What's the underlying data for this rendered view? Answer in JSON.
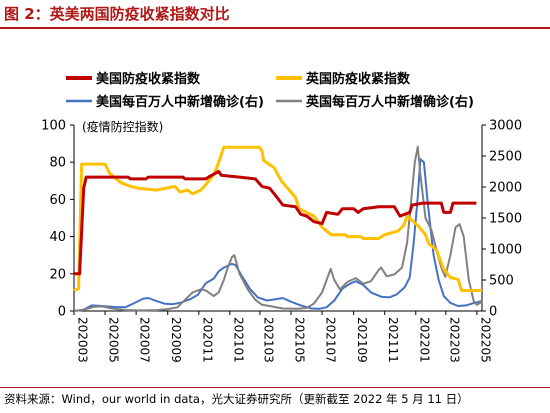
{
  "figure": {
    "title": "图 2：英美两国防疫收紧指数对比",
    "source": "资料来源：Wind，our world in data，光大证券研究所（更新截至 2022 年 5 月 11 日）"
  },
  "colors": {
    "title": "#b01818",
    "us_index": "#c00000",
    "uk_index": "#ffc000",
    "us_cases": "#4472c4",
    "uk_cases": "#808080"
  },
  "chart_data": {
    "type": "line",
    "ylabel": "(疫情防控指数)",
    "ylim": [
      0,
      100
    ],
    "y2lim": [
      0,
      3000
    ],
    "yticks": [
      0,
      20,
      40,
      60,
      80,
      100
    ],
    "y2ticks": [
      0,
      500,
      1000,
      1500,
      2000,
      2500,
      3000
    ],
    "xticks": [
      "202003",
      "202005",
      "202007",
      "202009",
      "202011",
      "202101",
      "202103",
      "202105",
      "202107",
      "202109",
      "202111",
      "202201",
      "202203",
      "202205"
    ],
    "xrange": [
      "2020-03-01",
      "2022-05-11"
    ],
    "legend_position": "top",
    "series": [
      {
        "name": "美国防疫收紧指数",
        "axis": "left",
        "color": "#c00000",
        "points": [
          [
            "2020-03-01",
            20
          ],
          [
            "2020-03-12",
            20
          ],
          [
            "2020-03-20",
            66
          ],
          [
            "2020-03-25",
            72
          ],
          [
            "2020-06-15",
            72
          ],
          [
            "2020-06-20",
            71
          ],
          [
            "2020-07-20",
            71
          ],
          [
            "2020-07-25",
            72
          ],
          [
            "2020-10-01",
            72
          ],
          [
            "2020-10-05",
            71
          ],
          [
            "2020-11-15",
            71
          ],
          [
            "2020-11-20",
            72
          ],
          [
            "2020-12-10",
            75
          ],
          [
            "2020-12-15",
            73
          ],
          [
            "2021-01-20",
            72
          ],
          [
            "2021-02-20",
            71
          ],
          [
            "2021-03-05",
            67
          ],
          [
            "2021-03-20",
            66
          ],
          [
            "2021-04-01",
            62
          ],
          [
            "2021-04-15",
            57
          ],
          [
            "2021-05-10",
            56
          ],
          [
            "2021-05-20",
            52
          ],
          [
            "2021-06-01",
            51
          ],
          [
            "2021-06-15",
            48
          ],
          [
            "2021-07-01",
            47
          ],
          [
            "2021-07-10",
            53
          ],
          [
            "2021-08-01",
            52
          ],
          [
            "2021-08-10",
            55
          ],
          [
            "2021-09-01",
            55
          ],
          [
            "2021-09-10",
            53
          ],
          [
            "2021-09-20",
            55
          ],
          [
            "2021-10-20",
            56
          ],
          [
            "2021-11-20",
            56
          ],
          [
            "2021-12-01",
            51
          ],
          [
            "2021-12-20",
            53
          ],
          [
            "2021-12-25",
            57
          ],
          [
            "2022-01-15",
            58
          ],
          [
            "2022-02-20",
            58
          ],
          [
            "2022-02-25",
            53
          ],
          [
            "2022-03-10",
            53
          ],
          [
            "2022-03-15",
            58
          ],
          [
            "2022-04-30",
            58
          ]
        ]
      },
      {
        "name": "英国防疫收紧指数",
        "axis": "left",
        "color": "#ffc000",
        "points": [
          [
            "2020-03-01",
            11
          ],
          [
            "2020-03-10",
            12
          ],
          [
            "2020-03-16",
            79
          ],
          [
            "2020-05-01",
            79
          ],
          [
            "2020-05-10",
            74
          ],
          [
            "2020-06-01",
            69
          ],
          [
            "2020-06-20",
            67
          ],
          [
            "2020-07-05",
            66
          ],
          [
            "2020-08-10",
            65
          ],
          [
            "2020-09-15",
            67
          ],
          [
            "2020-09-25",
            64
          ],
          [
            "2020-10-10",
            65
          ],
          [
            "2020-10-20",
            63
          ],
          [
            "2020-11-05",
            65
          ],
          [
            "2020-11-15",
            68
          ],
          [
            "2020-12-02",
            74
          ],
          [
            "2020-12-10",
            80
          ],
          [
            "2020-12-20",
            88
          ],
          [
            "2021-01-05",
            88
          ],
          [
            "2021-02-28",
            88
          ],
          [
            "2021-03-05",
            86
          ],
          [
            "2021-03-08",
            81
          ],
          [
            "2021-03-29",
            77
          ],
          [
            "2021-04-12",
            70
          ],
          [
            "2021-05-10",
            61
          ],
          [
            "2021-05-17",
            55
          ],
          [
            "2021-06-15",
            51
          ],
          [
            "2021-07-01",
            45
          ],
          [
            "2021-07-19",
            41
          ],
          [
            "2021-08-15",
            41
          ],
          [
            "2021-08-20",
            40
          ],
          [
            "2021-09-15",
            40
          ],
          [
            "2021-09-20",
            39
          ],
          [
            "2021-10-20",
            39
          ],
          [
            "2021-11-01",
            41
          ],
          [
            "2021-11-27",
            43
          ],
          [
            "2021-12-08",
            46
          ],
          [
            "2021-12-15",
            51
          ],
          [
            "2022-01-05",
            46
          ],
          [
            "2022-01-20",
            41
          ],
          [
            "2022-01-27",
            36
          ],
          [
            "2022-02-10",
            33
          ],
          [
            "2022-02-24",
            23
          ],
          [
            "2022-03-10",
            18
          ],
          [
            "2022-03-25",
            17
          ],
          [
            "2022-04-01",
            11
          ],
          [
            "2022-05-11",
            11
          ]
        ]
      },
      {
        "name": "美国每百万人中新增确诊(右)",
        "axis": "right",
        "color": "#4472c4",
        "points": [
          [
            "2020-03-01",
            0
          ],
          [
            "2020-03-20",
            20
          ],
          [
            "2020-04-05",
            90
          ],
          [
            "2020-04-25",
            80
          ],
          [
            "2020-05-20",
            65
          ],
          [
            "2020-06-10",
            60
          ],
          [
            "2020-06-25",
            120
          ],
          [
            "2020-07-15",
            200
          ],
          [
            "2020-07-25",
            210
          ],
          [
            "2020-08-10",
            160
          ],
          [
            "2020-08-25",
            120
          ],
          [
            "2020-09-10",
            110
          ],
          [
            "2020-09-25",
            130
          ],
          [
            "2020-10-15",
            190
          ],
          [
            "2020-10-30",
            260
          ],
          [
            "2020-11-15",
            450
          ],
          [
            "2020-11-30",
            520
          ],
          [
            "2020-12-10",
            640
          ],
          [
            "2020-12-20",
            700
          ],
          [
            "2021-01-05",
            760
          ],
          [
            "2021-01-12",
            740
          ],
          [
            "2021-01-25",
            560
          ],
          [
            "2021-02-10",
            350
          ],
          [
            "2021-02-25",
            220
          ],
          [
            "2021-03-15",
            170
          ],
          [
            "2021-04-01",
            190
          ],
          [
            "2021-04-15",
            210
          ],
          [
            "2021-05-01",
            150
          ],
          [
            "2021-05-20",
            90
          ],
          [
            "2021-06-10",
            40
          ],
          [
            "2021-06-25",
            35
          ],
          [
            "2021-07-10",
            60
          ],
          [
            "2021-07-25",
            170
          ],
          [
            "2021-08-10",
            360
          ],
          [
            "2021-08-25",
            440
          ],
          [
            "2021-09-05",
            480
          ],
          [
            "2021-09-20",
            420
          ],
          [
            "2021-10-05",
            300
          ],
          [
            "2021-10-25",
            230
          ],
          [
            "2021-11-10",
            220
          ],
          [
            "2021-11-25",
            270
          ],
          [
            "2021-12-10",
            380
          ],
          [
            "2021-12-20",
            540
          ],
          [
            "2021-12-28",
            1100
          ],
          [
            "2022-01-05",
            1850
          ],
          [
            "2022-01-10",
            2450
          ],
          [
            "2022-01-17",
            2400
          ],
          [
            "2022-01-25",
            1700
          ],
          [
            "2022-02-05",
            900
          ],
          [
            "2022-02-15",
            500
          ],
          [
            "2022-02-25",
            240
          ],
          [
            "2022-03-10",
            130
          ],
          [
            "2022-03-25",
            80
          ],
          [
            "2022-04-10",
            90
          ],
          [
            "2022-04-25",
            130
          ],
          [
            "2022-05-11",
            160
          ]
        ]
      },
      {
        "name": "英国每百万人中新增确诊(右)",
        "axis": "right",
        "color": "#808080",
        "points": [
          [
            "2020-03-01",
            0
          ],
          [
            "2020-03-20",
            20
          ],
          [
            "2020-04-10",
            70
          ],
          [
            "2020-04-25",
            75
          ],
          [
            "2020-05-15",
            40
          ],
          [
            "2020-06-10",
            15
          ],
          [
            "2020-07-10",
            10
          ],
          [
            "2020-08-10",
            15
          ],
          [
            "2020-09-01",
            30
          ],
          [
            "2020-09-20",
            60
          ],
          [
            "2020-10-05",
            180
          ],
          [
            "2020-10-20",
            300
          ],
          [
            "2020-11-05",
            350
          ],
          [
            "2020-11-15",
            330
          ],
          [
            "2020-11-30",
            240
          ],
          [
            "2020-12-10",
            300
          ],
          [
            "2020-12-20",
            500
          ],
          [
            "2020-12-28",
            700
          ],
          [
            "2021-01-05",
            870
          ],
          [
            "2021-01-10",
            900
          ],
          [
            "2021-01-20",
            600
          ],
          [
            "2021-02-05",
            350
          ],
          [
            "2021-02-20",
            180
          ],
          [
            "2021-03-05",
            100
          ],
          [
            "2021-03-20",
            80
          ],
          [
            "2021-04-15",
            40
          ],
          [
            "2021-05-15",
            35
          ],
          [
            "2021-06-01",
            50
          ],
          [
            "2021-06-15",
            120
          ],
          [
            "2021-07-01",
            300
          ],
          [
            "2021-07-10",
            500
          ],
          [
            "2021-07-18",
            680
          ],
          [
            "2021-07-25",
            500
          ],
          [
            "2021-08-05",
            350
          ],
          [
            "2021-08-20",
            470
          ],
          [
            "2021-09-05",
            530
          ],
          [
            "2021-09-20",
            440
          ],
          [
            "2021-10-05",
            480
          ],
          [
            "2021-10-20",
            660
          ],
          [
            "2021-10-25",
            700
          ],
          [
            "2021-11-05",
            560
          ],
          [
            "2021-11-20",
            590
          ],
          [
            "2021-12-05",
            700
          ],
          [
            "2021-12-15",
            1100
          ],
          [
            "2021-12-22",
            1700
          ],
          [
            "2021-12-30",
            2400
          ],
          [
            "2022-01-05",
            2650
          ],
          [
            "2022-01-10",
            2200
          ],
          [
            "2022-01-20",
            1500
          ],
          [
            "2022-02-01",
            1300
          ],
          [
            "2022-02-10",
            1000
          ],
          [
            "2022-02-20",
            700
          ],
          [
            "2022-02-28",
            550
          ],
          [
            "2022-03-10",
            900
          ],
          [
            "2022-03-20",
            1350
          ],
          [
            "2022-03-28",
            1400
          ],
          [
            "2022-04-05",
            1200
          ],
          [
            "2022-04-15",
            500
          ],
          [
            "2022-04-25",
            150
          ],
          [
            "2022-05-01",
            100
          ],
          [
            "2022-05-11",
            150
          ]
        ]
      }
    ]
  }
}
